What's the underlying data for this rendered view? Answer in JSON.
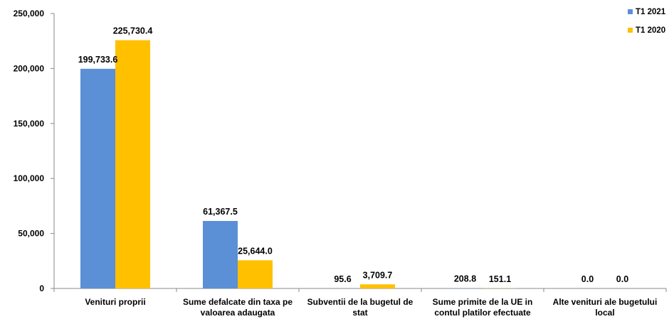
{
  "chart_data": {
    "type": "bar",
    "categories": [
      [
        "Venituri proprii"
      ],
      [
        "Sume defalcate din taxa pe",
        "valoarea adaugata"
      ],
      [
        "Subventii de la bugetul de",
        "stat"
      ],
      [
        "Sume primite de la UE in",
        "contul platilor efectuate"
      ],
      [
        "Alte venituri ale bugetului",
        "local"
      ]
    ],
    "series": [
      {
        "name": "T1 2021",
        "color": "#5b8fd6",
        "values": [
          199733.6,
          61367.5,
          95.6,
          208.8,
          0.0
        ],
        "labels": [
          "199,733.6",
          "61,367.5",
          "95.6",
          "208.8",
          "0.0"
        ]
      },
      {
        "name": "T1 2020",
        "color": "#ffc000",
        "values": [
          225730.4,
          25644.0,
          3709.7,
          151.1,
          0.0
        ],
        "labels": [
          "225,730.4",
          "25,644.0",
          "3,709.7",
          "151.1",
          "0.0"
        ]
      }
    ],
    "yticks": [
      0,
      50000,
      100000,
      150000,
      200000,
      250000
    ],
    "ytick_labels": [
      "0",
      "50,000",
      "100,000",
      "150,000",
      "200,000",
      "250,000"
    ],
    "ylim": [
      0,
      250000
    ],
    "grid": false,
    "legend_position": "top-right"
  }
}
